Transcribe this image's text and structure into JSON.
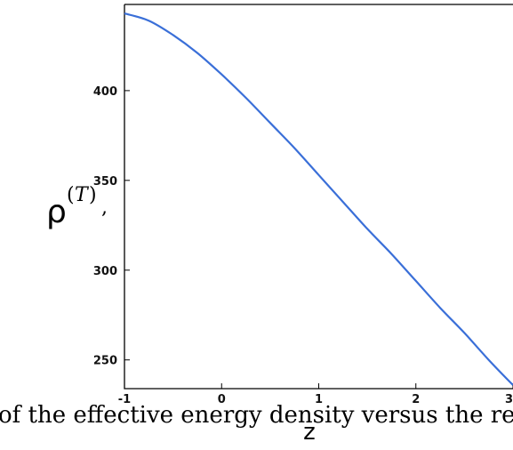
{
  "chart_data": {
    "type": "line",
    "xlabel": "z",
    "ylabel": {
      "symbol": "ρ",
      "superscript": "T",
      "open_paren": "(",
      "close_paren": ")",
      "trailing": ","
    },
    "xlim": [
      -1,
      3
    ],
    "ylim": [
      234,
      448
    ],
    "x_ticks": [
      -1,
      0,
      1,
      2,
      3
    ],
    "y_ticks": [
      250,
      300,
      350,
      400
    ],
    "grid": false,
    "line_color": "#3a6fd8",
    "series": [
      {
        "x": [
          -1,
          -0.75,
          -0.5,
          -0.25,
          0,
          0.25,
          0.5,
          0.75,
          1,
          1.25,
          1.5,
          1.75,
          2,
          2.25,
          2.5,
          2.75,
          3
        ],
        "y": [
          443,
          439,
          431,
          421,
          409,
          396,
          382,
          368,
          353,
          338,
          323,
          309,
          294,
          279,
          265,
          250,
          236
        ]
      }
    ],
    "caption": "of the effective energy density versus the redsh"
  }
}
